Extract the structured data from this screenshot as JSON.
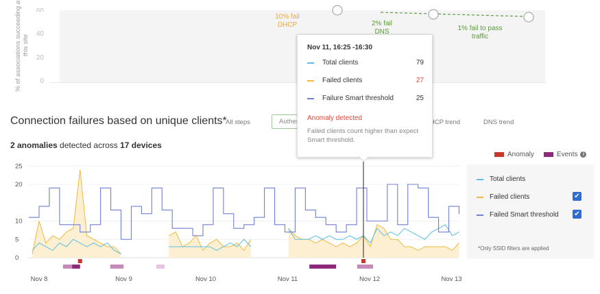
{
  "top_chart": {
    "y_axis_label": "% of associations succeeding at this site",
    "y_ticks": [
      "60",
      "40",
      "20",
      "0"
    ],
    "labels": {
      "dhcp": "10% fail DHCP",
      "dns": "2% fail DNS",
      "traffic": "1% fail to pass traffic"
    },
    "colors": {
      "dhcp": "#f0a830",
      "dns": "#5a9a3a",
      "traffic": "#5a9a3a"
    }
  },
  "section": {
    "title": "Connection failures based on unique clients*",
    "tabs": [
      "All steps",
      "Authentication",
      "DHCP trend",
      "DNS trend"
    ],
    "active_tab": "Authentication",
    "summary": {
      "anomaly_count": "2 anomalies",
      "mid": " detected across ",
      "device_count": "17 devices"
    }
  },
  "tooltip": {
    "title": "Nov 11, 16:25 -16:30",
    "rows": [
      {
        "label": "Total clients",
        "value": "79",
        "color": "#5bbde0"
      },
      {
        "label": "Failed clients",
        "value": "27",
        "color": "#f0b93a",
        "value_color": "#e0483a"
      },
      {
        "label": "Failure Smart threshold",
        "value": "25",
        "color": "#6f7fd6"
      }
    ],
    "anomaly_title": "Anomaly detected",
    "anomaly_text": "Failed clients count higher than expect Smart threshold."
  },
  "legend_top": {
    "anomaly": "Anomaly",
    "events": "Events",
    "info_icon": "info-icon"
  },
  "legend_panel": {
    "items": [
      {
        "label": "Total clients",
        "color": "#5bbde0",
        "checkbox": false
      },
      {
        "label": "Failed clients",
        "color": "#f0b93a",
        "checkbox": true,
        "checked": true
      },
      {
        "label": "Failed Smart threshold",
        "color": "#6f7fd6",
        "checkbox": true,
        "checked": true
      }
    ],
    "footnote": "*Only SSID filters are applied"
  },
  "chart_data": {
    "type": "line",
    "ylim": [
      0,
      25
    ],
    "y_ticks": [
      0,
      5,
      10,
      20,
      25
    ],
    "x_ticks": [
      "Nov 8",
      "Nov 9",
      "Nov 10",
      "Nov 11",
      "Nov 12",
      "Nov 13"
    ],
    "grid": true,
    "colors": {
      "total": "#5bbde0",
      "failed": "#f0b93a",
      "failed_fill": "#fdf0d2",
      "threshold": "#6f7fd6",
      "anomaly": "#c8382b",
      "event_dark": "#8e2a7c",
      "event_mid": "#c48ab8",
      "event_light": "#e6c6df"
    },
    "threshold": {
      "name": "Failed Smart threshold",
      "start": "Nov 7 21:00",
      "step_hours": 3,
      "values": [
        11,
        14,
        19,
        9,
        9,
        7,
        9,
        19,
        13,
        5,
        14,
        12,
        19,
        13,
        8,
        8,
        6,
        9,
        19,
        12,
        8,
        9,
        11,
        19,
        9,
        7,
        19,
        13,
        11,
        9,
        7,
        9,
        19,
        10,
        10,
        20,
        9,
        20,
        19,
        11,
        7,
        14,
        12
      ]
    },
    "segments": [
      {
        "start": "Nov 7 22:00",
        "step_hours": 2,
        "total": [
          2,
          4,
          3,
          2,
          4,
          3,
          5,
          4,
          3,
          4,
          3,
          4,
          2,
          1
        ],
        "failed": [
          1,
          10,
          4,
          6,
          5,
          7,
          8,
          24,
          6,
          5,
          4,
          3,
          3,
          1
        ]
      },
      {
        "start": "Nov 9 14:00",
        "step_hours": 2,
        "total": [
          3,
          3,
          3,
          3,
          3,
          3,
          3,
          2,
          3,
          4,
          3,
          5,
          3
        ],
        "failed": [
          6,
          7,
          3,
          4,
          6,
          2,
          4,
          5,
          3,
          3,
          4,
          2,
          5
        ]
      },
      {
        "start": "Nov 11 01:00",
        "step_hours": 2,
        "total": [
          8,
          5,
          5,
          5,
          6,
          5,
          6,
          5,
          5,
          6,
          5,
          6,
          4,
          8,
          6,
          7,
          6,
          8,
          7,
          6,
          5,
          7,
          8,
          9,
          6,
          7
        ],
        "failed": [
          8,
          6,
          5,
          5,
          4,
          5,
          4,
          3,
          4,
          3,
          4,
          6,
          3,
          9,
          8,
          5,
          5,
          3,
          3,
          2,
          3,
          3,
          3,
          3,
          2,
          4
        ]
      }
    ],
    "anomalies": [
      "Nov 8 12:00",
      "Nov 11 23:00"
    ],
    "events": [
      {
        "from": "Nov 8 07:00",
        "to": "Nov 8 09:40",
        "shade": "mid"
      },
      {
        "from": "Nov 8 09:40",
        "to": "Nov 8 12:00",
        "shade": "dark"
      },
      {
        "from": "Nov 8 20:50",
        "to": "Nov 9 00:45",
        "shade": "mid"
      },
      {
        "from": "Nov 9 10:20",
        "to": "Nov 9 12:45",
        "shade": "light"
      },
      {
        "from": "Nov 11 07:10",
        "to": "Nov 11 15:00",
        "shade": "dark"
      },
      {
        "from": "Nov 11 21:10",
        "to": "Nov 12 01:50",
        "shade": "mid"
      }
    ]
  }
}
